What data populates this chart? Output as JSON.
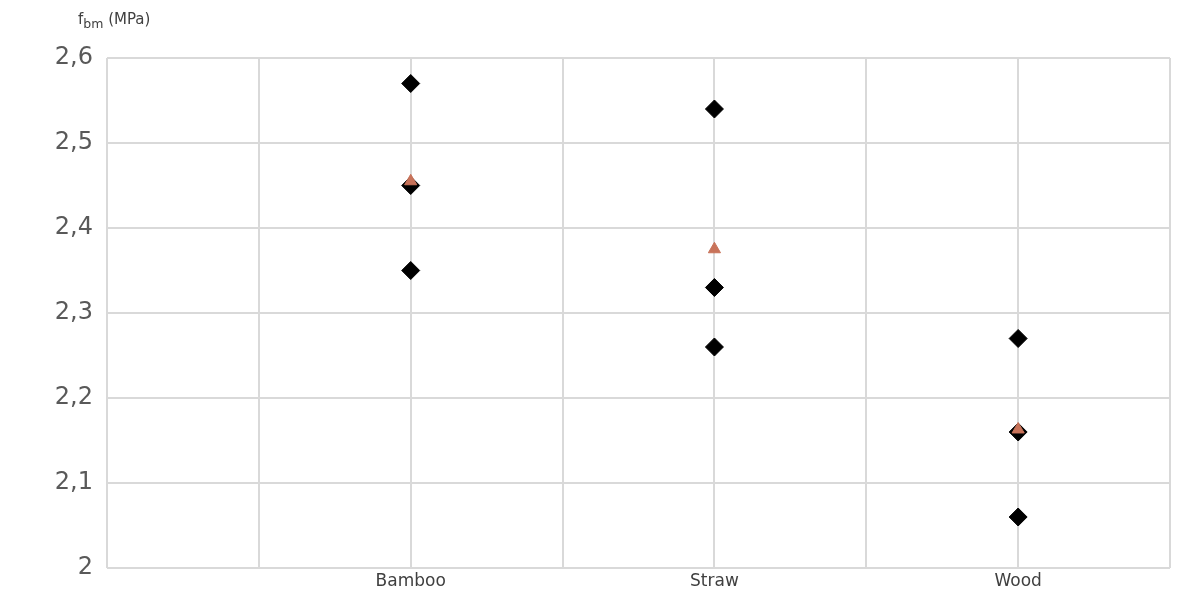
{
  "chart_data": {
    "type": "scatter",
    "ylabel": "f$_{bm}$ (MPa)",
    "categories": [
      null,
      "Bamboo",
      "Straw",
      "Wood"
    ],
    "ylim": [
      2,
      2.6
    ],
    "yticks": [
      2,
      {
        "value": 2.1,
        "label": "2,1"
      },
      {
        "value": 2.2,
        "label": "2,2"
      },
      {
        "value": 2.3,
        "label": "2,3"
      },
      {
        "value": 2.4,
        "label": "2,4"
      },
      {
        "value": 2.5,
        "label": "2,5"
      },
      {
        "value": 2.6,
        "label": "2,6"
      }
    ],
    "grid": true,
    "legend": false,
    "series": [
      {
        "color": "#000000",
        "marker": "diamond",
        "values": [
          null,
          2.57,
          2.54,
          2.27
        ]
      },
      {
        "color": "#000000",
        "marker": "diamond",
        "values": [
          null,
          2.45,
          2.33,
          2.16
        ]
      },
      {
        "color": "#000000",
        "marker": "diamond",
        "values": [
          null,
          2.35,
          2.26,
          2.06
        ]
      },
      {
        "color": "#c8735a",
        "marker": "triangle",
        "values": [
          null,
          2.455,
          2.375,
          2.163
        ]
      }
    ]
  }
}
